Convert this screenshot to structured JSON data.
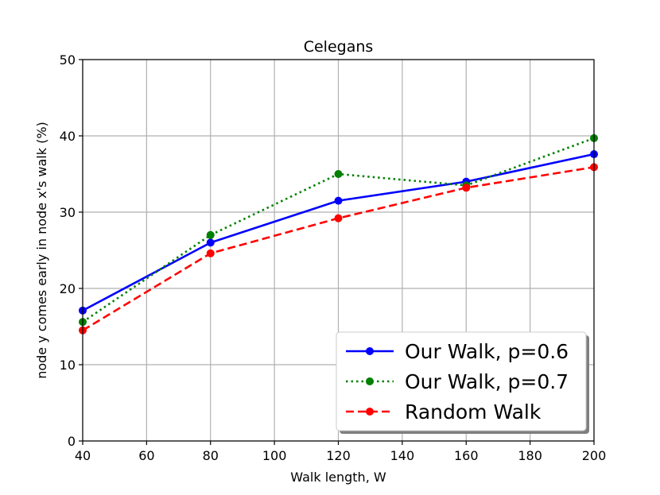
{
  "chart_data": {
    "type": "line",
    "title": "Celegans",
    "xlabel": "Walk length, W",
    "ylabel": "node y comes early in node x's walk (%)",
    "xlim": [
      40,
      200
    ],
    "ylim": [
      0,
      50
    ],
    "xticks": [
      40,
      60,
      80,
      100,
      120,
      140,
      160,
      180,
      200
    ],
    "yticks": [
      0,
      10,
      20,
      30,
      40,
      50
    ],
    "grid": true,
    "legend_position": "lower-right",
    "series": [
      {
        "name": "Our Walk, p=0.6",
        "color": "#0000ff",
        "style": "solid",
        "x": [
          40,
          80,
          120,
          160,
          200
        ],
        "y": [
          17.1,
          26.0,
          31.5,
          34.0,
          37.6
        ]
      },
      {
        "name": "Our Walk, p=0.7",
        "color": "#008000",
        "style": "dotted",
        "x": [
          40,
          80,
          120,
          160,
          200
        ],
        "y": [
          15.6,
          27.0,
          35.0,
          33.5,
          39.7
        ]
      },
      {
        "name": "Random Walk",
        "color": "#ff0000",
        "style": "dashed",
        "x": [
          40,
          80,
          120,
          160,
          200
        ],
        "y": [
          14.5,
          24.6,
          29.2,
          33.2,
          35.9
        ]
      }
    ]
  }
}
